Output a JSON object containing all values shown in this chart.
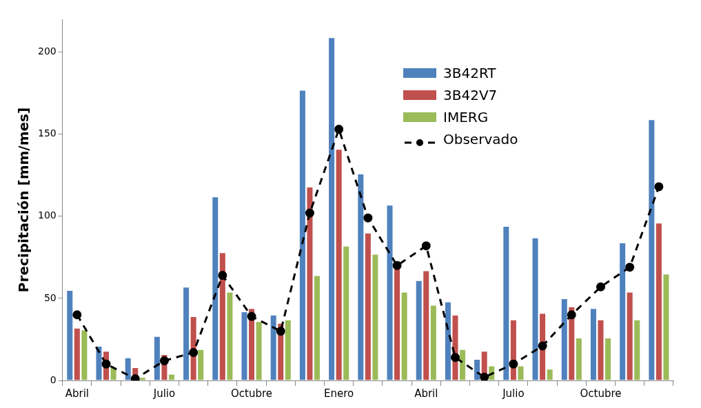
{
  "chart_data": {
    "type": "bar",
    "ylabel": "Precipitación [mm/mes]",
    "categories": [
      "Abril",
      null,
      null,
      "Julio",
      null,
      null,
      "Octubre",
      null,
      null,
      "Enero",
      null,
      null,
      "Abril",
      null,
      null,
      "Julio",
      null,
      null,
      "Octubre",
      null,
      null
    ],
    "series": [
      {
        "name": "3B42RT",
        "color": "#4f81bd",
        "values": [
          55,
          21,
          14,
          27,
          57,
          112,
          42,
          40,
          177,
          209,
          126,
          107,
          61,
          48,
          13,
          94,
          87,
          50,
          44,
          84,
          159
        ]
      },
      {
        "name": "3B42V7",
        "color": "#c0504d",
        "values": [
          32,
          18,
          8,
          16,
          39,
          78,
          44,
          35,
          118,
          141,
          90,
          73,
          67,
          40,
          18,
          37,
          41,
          45,
          37,
          54,
          96
        ]
      },
      {
        "name": "IMERG",
        "color": "#9bbb59",
        "values": [
          31,
          8,
          2,
          4,
          19,
          54,
          36,
          37,
          64,
          82,
          77,
          54,
          46,
          19,
          9,
          9,
          7,
          26,
          26,
          37,
          65
        ]
      },
      {
        "name": "Observado",
        "type": "line",
        "color": "#000000",
        "marker": "circle",
        "line_style": "dashed",
        "values": [
          40,
          10,
          1,
          12,
          17,
          64,
          39,
          30,
          102,
          153,
          99,
          70,
          82,
          14,
          2,
          10,
          21,
          40,
          57,
          69,
          118
        ]
      }
    ],
    "ylim": [
      0,
      220
    ],
    "yticks": [
      0,
      50,
      100,
      150,
      200
    ],
    "grid": false,
    "legend": "top right"
  }
}
